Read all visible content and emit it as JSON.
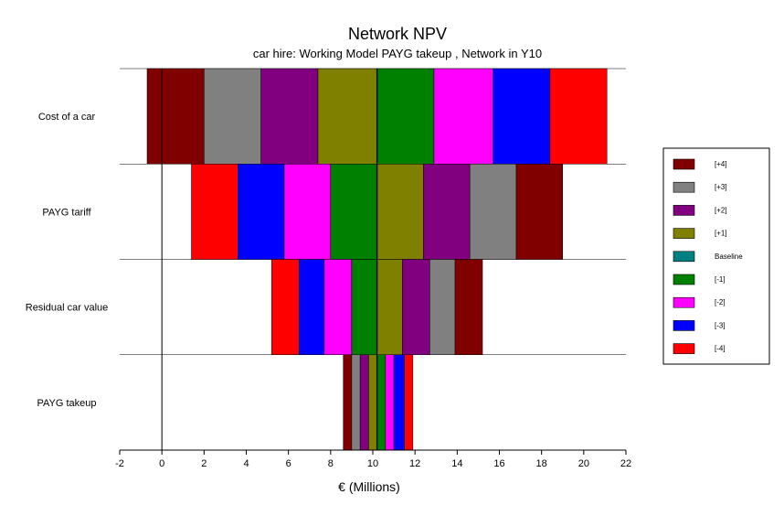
{
  "chart_data": {
    "type": "bar",
    "subtype": "tornado",
    "title": "Network NPV",
    "subtitle": "car hire:  Working Model PAYG takeup , Network in Y10",
    "xlabel": "€  (Millions)",
    "xlim": [
      -2,
      22
    ],
    "xticks": [
      -2,
      0,
      2,
      4,
      6,
      8,
      10,
      12,
      14,
      16,
      18,
      20,
      22
    ],
    "baseline": 10.2,
    "categories": [
      "Cost of a car",
      "PAYG tariff",
      "Residual car value",
      "PAYG takeup"
    ],
    "legend_position": "right",
    "legend": [
      {
        "label": "[+4]",
        "color": "#800000"
      },
      {
        "label": "[+3]",
        "color": "#808080"
      },
      {
        "label": "[+2]",
        "color": "#800080"
      },
      {
        "label": "[+1]",
        "color": "#808000"
      },
      {
        "label": "Baseline",
        "color": "#008080"
      },
      {
        "label": "[-1]",
        "color": "#008000"
      },
      {
        "label": "[-2]",
        "color": "#ff00ff"
      },
      {
        "label": "[-3]",
        "color": "#0000ff"
      },
      {
        "label": "[-4]",
        "color": "#ff0000"
      }
    ],
    "series": [
      {
        "category": "Cost of a car",
        "segments": [
          {
            "level": "[+4]",
            "from": -0.7,
            "to": 2.0
          },
          {
            "level": "[+3]",
            "from": 2.0,
            "to": 4.7
          },
          {
            "level": "[+2]",
            "from": 4.7,
            "to": 7.4
          },
          {
            "level": "[+1]",
            "from": 7.4,
            "to": 10.2
          },
          {
            "level": "[-1]",
            "from": 10.2,
            "to": 12.9
          },
          {
            "level": "[-2]",
            "from": 12.9,
            "to": 15.7
          },
          {
            "level": "[-3]",
            "from": 15.7,
            "to": 18.4
          },
          {
            "level": "[-4]",
            "from": 18.4,
            "to": 21.1
          }
        ]
      },
      {
        "category": "PAYG tariff",
        "segments": [
          {
            "level": "[-4]",
            "from": 1.4,
            "to": 3.6
          },
          {
            "level": "[-3]",
            "from": 3.6,
            "to": 5.8
          },
          {
            "level": "[-2]",
            "from": 5.8,
            "to": 8.0
          },
          {
            "level": "[-1]",
            "from": 8.0,
            "to": 10.2
          },
          {
            "level": "[+1]",
            "from": 10.2,
            "to": 12.4
          },
          {
            "level": "[+2]",
            "from": 12.4,
            "to": 14.6
          },
          {
            "level": "[+3]",
            "from": 14.6,
            "to": 16.8
          },
          {
            "level": "[+4]",
            "from": 16.8,
            "to": 19.0
          }
        ]
      },
      {
        "category": "Residual car value",
        "segments": [
          {
            "level": "[-4]",
            "from": 5.2,
            "to": 6.5
          },
          {
            "level": "[-3]",
            "from": 6.5,
            "to": 7.7
          },
          {
            "level": "[-2]",
            "from": 7.7,
            "to": 9.0
          },
          {
            "level": "[-1]",
            "from": 9.0,
            "to": 10.2
          },
          {
            "level": "[+1]",
            "from": 10.2,
            "to": 11.4
          },
          {
            "level": "[+2]",
            "from": 11.4,
            "to": 12.7
          },
          {
            "level": "[+3]",
            "from": 12.7,
            "to": 13.9
          },
          {
            "level": "[+4]",
            "from": 13.9,
            "to": 15.2
          }
        ]
      },
      {
        "category": "PAYG takeup",
        "segments": [
          {
            "level": "[+4]",
            "from": 8.6,
            "to": 9.0
          },
          {
            "level": "[+3]",
            "from": 9.0,
            "to": 9.4
          },
          {
            "level": "[+2]",
            "from": 9.4,
            "to": 9.8
          },
          {
            "level": "[+1]",
            "from": 9.8,
            "to": 10.2
          },
          {
            "level": "[-1]",
            "from": 10.2,
            "to": 10.6
          },
          {
            "level": "[-2]",
            "from": 10.6,
            "to": 11.0
          },
          {
            "level": "[-3]",
            "from": 11.0,
            "to": 11.5
          },
          {
            "level": "[-4]",
            "from": 11.5,
            "to": 11.9
          }
        ]
      }
    ]
  }
}
